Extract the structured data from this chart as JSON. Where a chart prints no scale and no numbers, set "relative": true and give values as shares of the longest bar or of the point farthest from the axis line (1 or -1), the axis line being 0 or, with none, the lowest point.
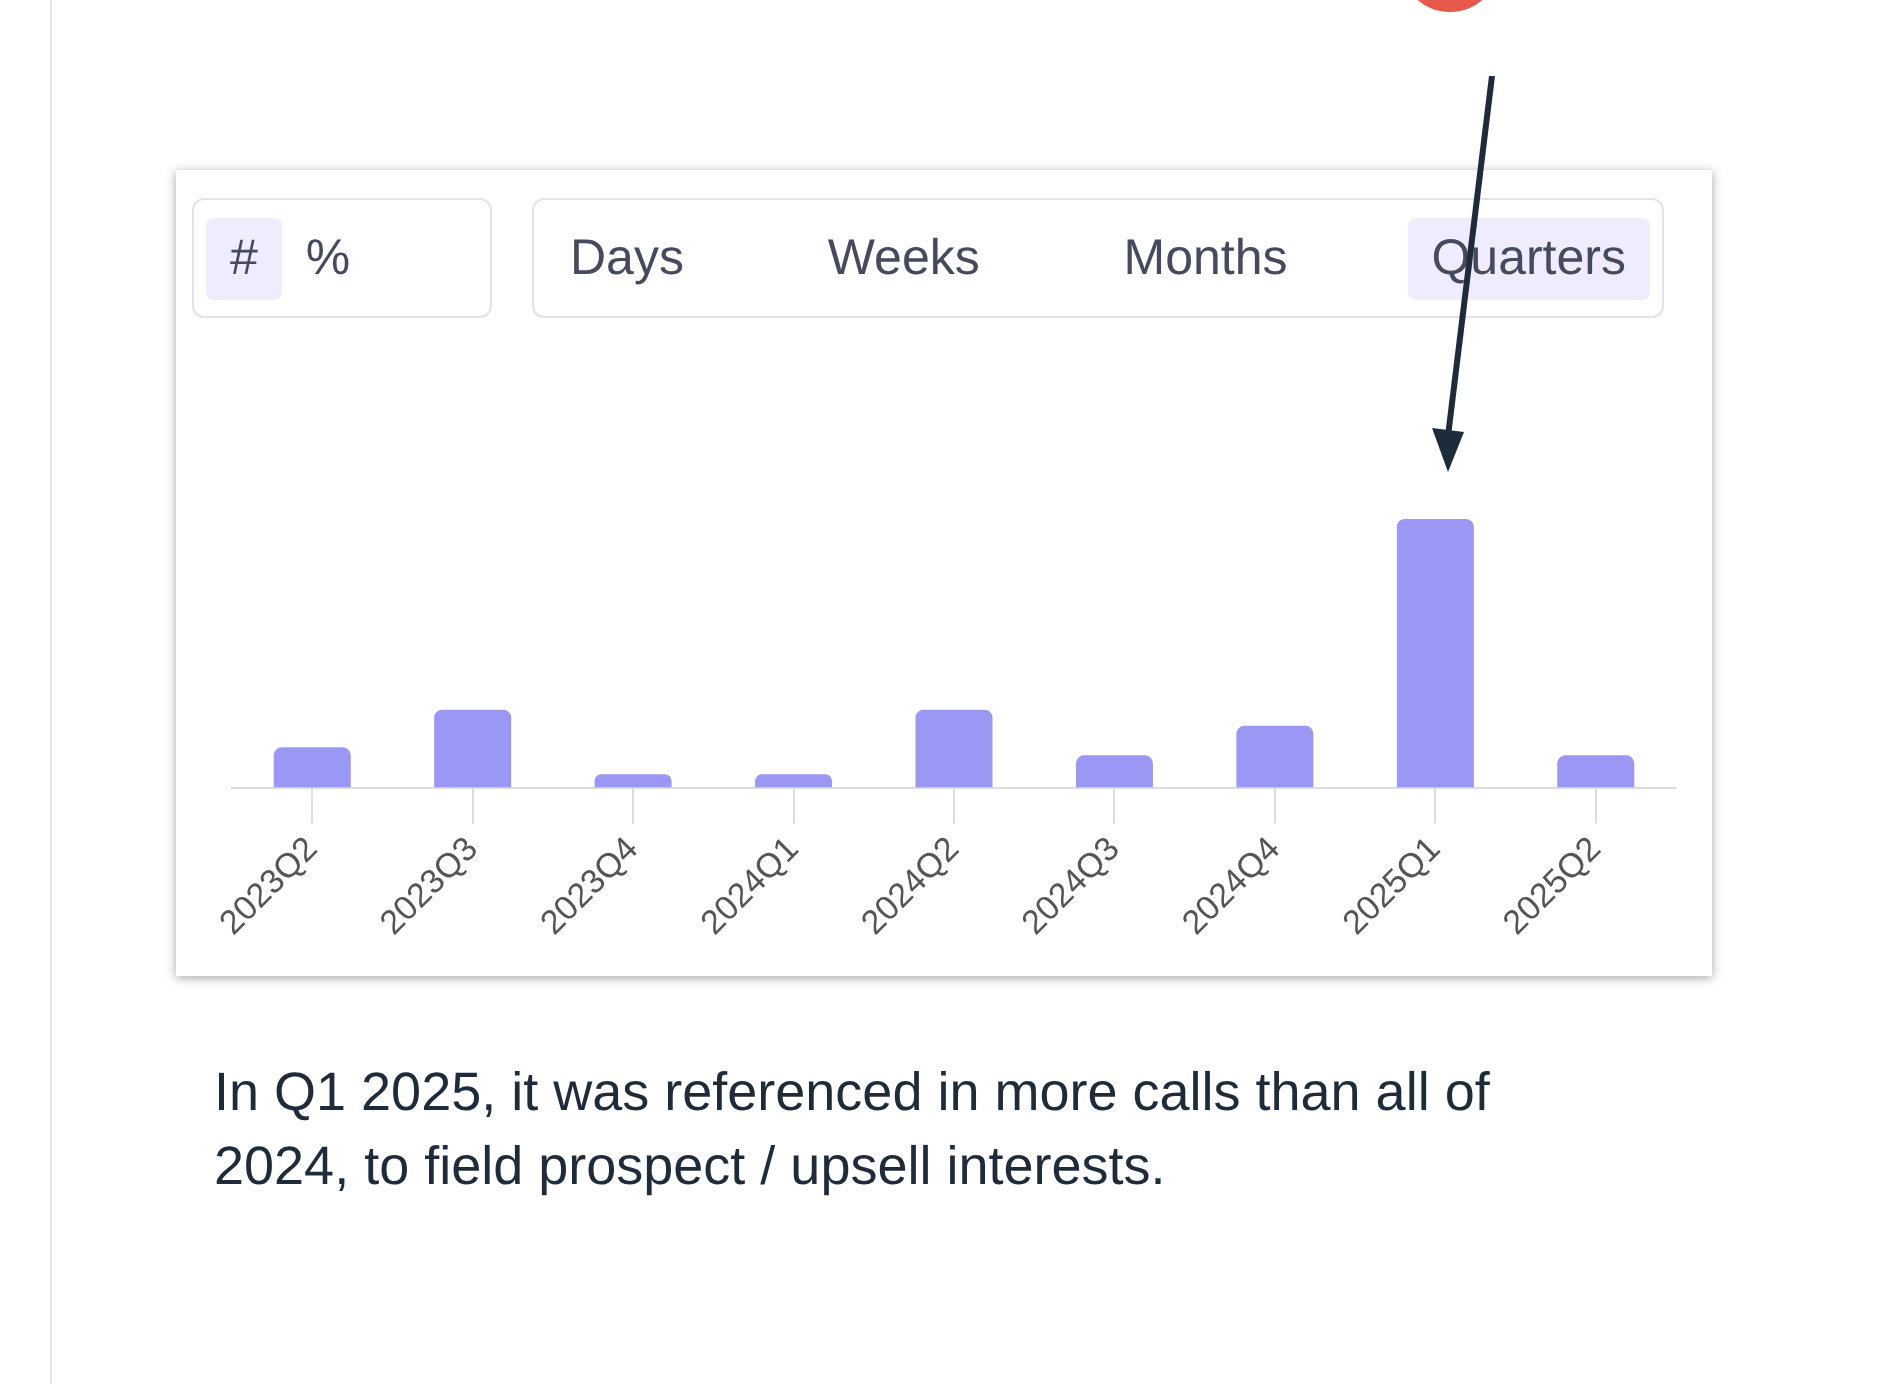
{
  "chart_data": {
    "type": "bar",
    "relative": true,
    "color": "#9b97f5",
    "categories": [
      "2023Q2",
      "2023Q3",
      "2023Q4",
      "2024Q1",
      "2024Q2",
      "2024Q3",
      "2024Q4",
      "2025Q1",
      "2025Q2"
    ],
    "values": [
      0.15,
      0.29,
      0.05,
      0.05,
      0.29,
      0.12,
      0.23,
      1,
      0.12
    ],
    "annotations": [
      "#",
      "%",
      "Days",
      "Weeks",
      "Months",
      "Quarters",
      "In Q1 2025, it was referenced in more calls than all of 2024, to field prospect / upsell interests."
    ]
  }
}
